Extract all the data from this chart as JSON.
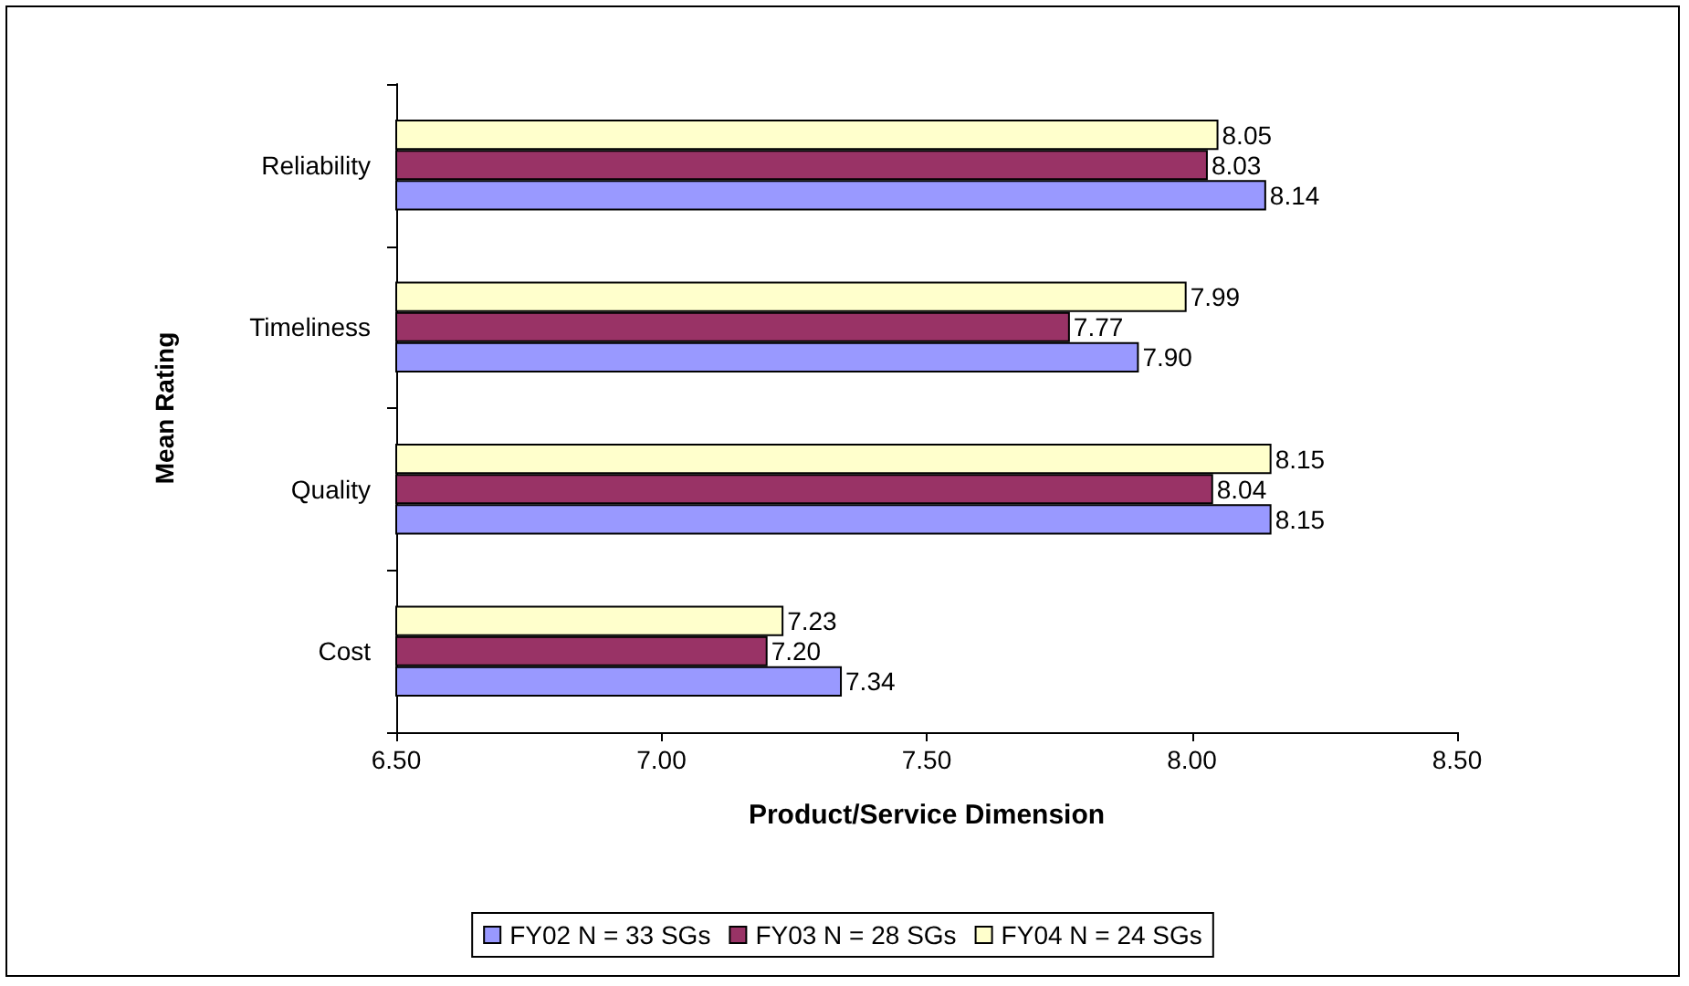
{
  "chart_data": {
    "type": "bar",
    "orientation": "horizontal",
    "xlabel": "Product/Service Dimension",
    "ylabel": "Mean Rating",
    "categories": [
      "Reliability",
      "Timeliness",
      "Quality",
      "Cost"
    ],
    "series": [
      {
        "name": "FY02 N = 33 SGs",
        "color": "#9999ff",
        "values": [
          8.14,
          7.9,
          8.15,
          7.34
        ],
        "value_labels": [
          "8.14",
          "7.90",
          "8.15",
          "7.34"
        ]
      },
      {
        "name": "FY03 N = 28 SGs",
        "color": "#993366",
        "values": [
          8.03,
          7.77,
          8.04,
          7.2
        ],
        "value_labels": [
          "8.03",
          "7.77",
          "8.04",
          "7.20"
        ]
      },
      {
        "name": "FY04 N = 24 SGs",
        "color": "#ffffcc",
        "values": [
          8.05,
          7.99,
          8.15,
          7.23
        ],
        "value_labels": [
          "8.05",
          "7.99",
          "8.15",
          "7.23"
        ]
      }
    ],
    "xlim": [
      6.5,
      8.5
    ],
    "xticks": [
      {
        "value": 6.5,
        "label": "6.50"
      },
      {
        "value": 7,
        "label": "7.00"
      },
      {
        "value": 7.5,
        "label": "7.50"
      },
      {
        "value": 8,
        "label": "8.00"
      },
      {
        "value": 8.5,
        "label": "8.50"
      }
    ],
    "grid": false,
    "legend": "bottom"
  }
}
